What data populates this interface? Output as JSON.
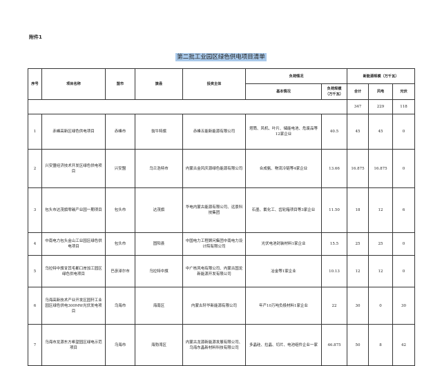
{
  "attachment_label": "附件1",
  "title": "第二批工业园区绿色供电项目清单",
  "headers": {
    "seq": "序号",
    "name": "项目名称",
    "city": "盟市",
    "county": "旗县",
    "investor": "投资主体",
    "load": "负荷情况",
    "load_basic": "基本情况",
    "load_scale": "负荷规模（万千瓦）",
    "new_energy": "新能源规模（万千瓦）",
    "total": "合计",
    "wind": "风电",
    "solar": "光伏"
  },
  "totals": {
    "total": "347",
    "wind": "229",
    "solar": "118"
  },
  "rows": [
    {
      "seq": "1",
      "name": "赤峰高新区绿色供电项目",
      "city": "赤峰市",
      "county": "翁牛特旗",
      "investor": "赤峰五能新能源有限公司",
      "basic": "塔筒、风机、叶片、储能电池、危废品等12家企业",
      "load": "40.5",
      "total": "45",
      "wind": "45",
      "solar": "0"
    },
    {
      "seq": "2",
      "name": "兴安盟经济技术开发区绿色供电项目",
      "city": "兴安盟",
      "county": "乌兰浩特市",
      "investor": "内蒙古金风庆源绿色能源有限公司",
      "basic": "合成氨、物流冷链等4家企业",
      "load": "13.66",
      "total": "16.875",
      "wind": "16.875",
      "solar": "0"
    },
    {
      "seq": "3",
      "name": "包头市达茂旗零碳产业园一期项目",
      "city": "包头市",
      "county": "达茂旗",
      "investor": "华电内蒙古能源有限公司、远景科技集团",
      "basic": "石墨、氟化工、齿轮箱项目等3家企业",
      "load": "11.50",
      "total": "18",
      "wind": "12",
      "solar": "6"
    },
    {
      "seq": "4",
      "name": "中南电力包头金山工业园区绿色供电项目",
      "city": "包头市",
      "county": "固阳县",
      "investor": "中国电力工程顾问集团中南电力设计院有限公司",
      "basic": "光伏电池封装材料1家企业",
      "load": "15.5",
      "total": "25",
      "wind": "25",
      "solar": "0"
    },
    {
      "seq": "5",
      "name": "乌拉特中旗甘其毛都口岸加工园区绿色供电项目",
      "city": "巴彦淖尔市",
      "county": "乌拉特中旗",
      "investor": "中广核风电有限公司、内蒙古国龙新能源开发有限公司",
      "basic": "冶金等1家企业",
      "load": "10.13",
      "total": "12",
      "wind": "12",
      "solar": "0"
    },
    {
      "seq": "6",
      "name": "乌海高新技术产业开发区园轩工业园区绿色供电300MW光伏发电项目",
      "city": "乌海市",
      "county": "海南区",
      "investor": "内蒙古轩华新能源有限公司",
      "basic": "年产10万吨负极材料1家企业",
      "load": "22",
      "total": "30",
      "wind": "0",
      "solar": "30"
    },
    {
      "seq": "7",
      "name": "乌海市龙源东方希望园区绿电示范项目",
      "city": "乌海市",
      "county": "海勃湾区",
      "investor": "内蒙古龙源新能源发展有限公司、乌海东晶新材料科技有限公司",
      "basic": "多晶硅、拉晶、切片、电池组件企业一家",
      "load": "46.875",
      "total": "50",
      "wind": "8",
      "solar": "42"
    }
  ]
}
